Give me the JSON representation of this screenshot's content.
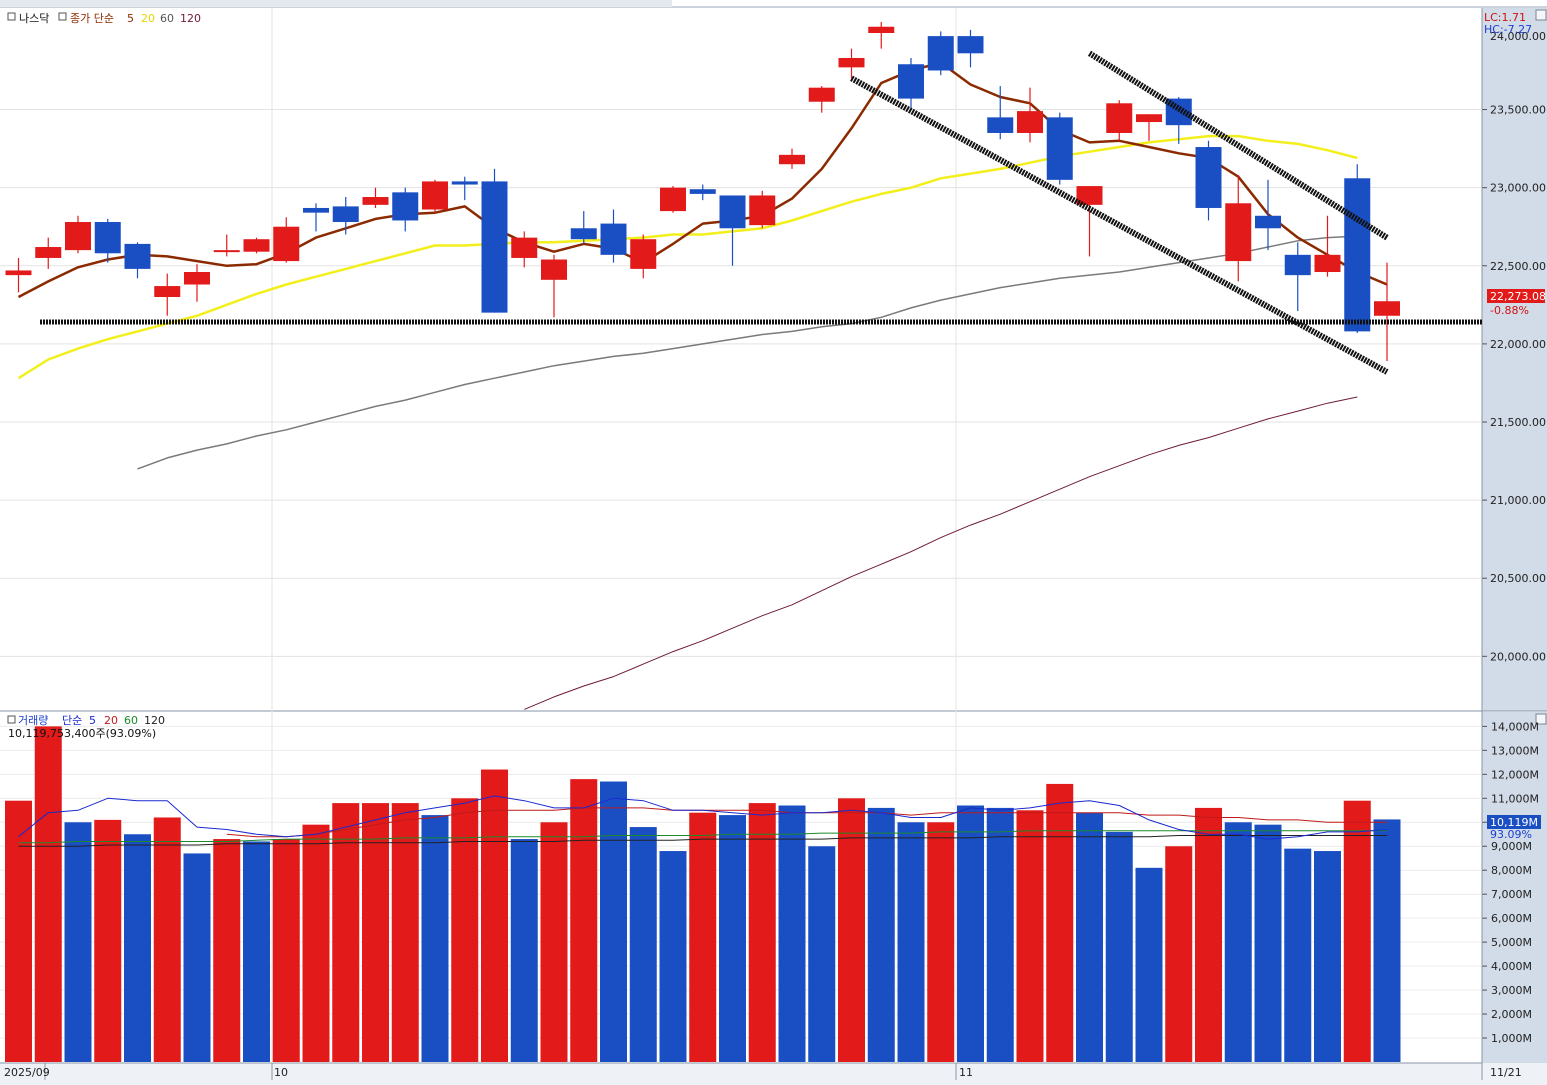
{
  "colors": {
    "up": "#e21a1a",
    "down": "#1a4fc4",
    "ma5": "#8b2a00",
    "ma20": "#f2ef1a",
    "ma60": "#7a7a7a",
    "ma120": "#6e1a3a",
    "vol_ma5": "#1a2ad0",
    "vol_ma20": "#c01a1a",
    "vol_ma60": "#1a8a2a",
    "vol_ma120": "#222222",
    "axis_bg": "#d2dbe8",
    "trendline": "#111111"
  },
  "price_panel": {
    "symbol": "나스닥",
    "indicator_label": "종가 단순",
    "ma_periods": [
      "5",
      "20",
      "60",
      "120"
    ],
    "lc_label": "LC:1.71",
    "hc_label": "HC:-7.27",
    "top_tick_partial": "24,000.00",
    "current_price": "22,273.08",
    "current_change": "-0.88%"
  },
  "volume_panel": {
    "title": "거래량",
    "indicator_label": "단순",
    "ma_periods": [
      "5",
      "20",
      "60",
      "120"
    ],
    "readout": "10,119,753,400주(93.09%)",
    "current_volume": "10,119M",
    "current_pct": "93.09%"
  },
  "date_labels": [
    "2025/09",
    "10",
    "11",
    "11/21"
  ],
  "chart_data": [
    {
      "type": "candlestick",
      "title": "나스닥",
      "ylim": [
        19650,
        24150
      ],
      "yticks": [
        20000,
        20500,
        21000,
        21500,
        22000,
        22500,
        23000,
        23500
      ],
      "ytick_labels": [
        "20,000.00",
        "20,500.00",
        "21,000.00",
        "21,500.00",
        "22,000.00",
        "22,500.00",
        "23,000.00",
        "23,500.00"
      ],
      "candles": [
        {
          "o": 22440,
          "h": 22550,
          "l": 22330,
          "c": 22470
        },
        {
          "o": 22550,
          "h": 22680,
          "l": 22480,
          "c": 22620
        },
        {
          "o": 22600,
          "h": 22820,
          "l": 22580,
          "c": 22780
        },
        {
          "o": 22780,
          "h": 22800,
          "l": 22520,
          "c": 22580
        },
        {
          "o": 22640,
          "h": 22650,
          "l": 22420,
          "c": 22480
        },
        {
          "o": 22300,
          "h": 22450,
          "l": 22180,
          "c": 22370
        },
        {
          "o": 22380,
          "h": 22510,
          "l": 22270,
          "c": 22460
        },
        {
          "o": 22590,
          "h": 22700,
          "l": 22560,
          "c": 22600
        },
        {
          "o": 22590,
          "h": 22680,
          "l": 22580,
          "c": 22670
        },
        {
          "o": 22530,
          "h": 22810,
          "l": 22520,
          "c": 22750
        },
        {
          "o": 22870,
          "h": 22900,
          "l": 22720,
          "c": 22840
        },
        {
          "o": 22880,
          "h": 22940,
          "l": 22700,
          "c": 22780
        },
        {
          "o": 22890,
          "h": 23000,
          "l": 22870,
          "c": 22940
        },
        {
          "o": 22970,
          "h": 23000,
          "l": 22720,
          "c": 22790
        },
        {
          "o": 22860,
          "h": 23050,
          "l": 22840,
          "c": 23040
        },
        {
          "o": 23040,
          "h": 23070,
          "l": 22920,
          "c": 23020
        },
        {
          "o": 23040,
          "h": 23120,
          "l": 22200,
          "c": 22200
        },
        {
          "o": 22550,
          "h": 22720,
          "l": 22490,
          "c": 22680
        },
        {
          "o": 22410,
          "h": 22570,
          "l": 22170,
          "c": 22540
        },
        {
          "o": 22740,
          "h": 22850,
          "l": 22640,
          "c": 22670
        },
        {
          "o": 22770,
          "h": 22860,
          "l": 22520,
          "c": 22570
        },
        {
          "o": 22480,
          "h": 22700,
          "l": 22420,
          "c": 22670
        },
        {
          "o": 22850,
          "h": 23010,
          "l": 22840,
          "c": 23000
        },
        {
          "o": 22990,
          "h": 23020,
          "l": 22920,
          "c": 22960
        },
        {
          "o": 22950,
          "h": 22950,
          "l": 22500,
          "c": 22740
        },
        {
          "o": 22760,
          "h": 22980,
          "l": 22740,
          "c": 22950
        },
        {
          "o": 23150,
          "h": 23250,
          "l": 23120,
          "c": 23210
        },
        {
          "o": 23550,
          "h": 23650,
          "l": 23480,
          "c": 23640
        },
        {
          "o": 23770,
          "h": 23890,
          "l": 23700,
          "c": 23830
        },
        {
          "o": 23990,
          "h": 24060,
          "l": 23890,
          "c": 24030
        },
        {
          "o": 23790,
          "h": 23830,
          "l": 23510,
          "c": 23570
        },
        {
          "o": 23970,
          "h": 24000,
          "l": 23720,
          "c": 23750
        },
        {
          "o": 23970,
          "h": 24010,
          "l": 23770,
          "c": 23860
        },
        {
          "o": 23450,
          "h": 23650,
          "l": 23310,
          "c": 23350
        },
        {
          "o": 23350,
          "h": 23640,
          "l": 23290,
          "c": 23490
        },
        {
          "o": 23450,
          "h": 23480,
          "l": 23020,
          "c": 23050
        },
        {
          "o": 22890,
          "h": 23010,
          "l": 22560,
          "c": 23010
        },
        {
          "o": 23350,
          "h": 23560,
          "l": 23300,
          "c": 23540
        },
        {
          "o": 23420,
          "h": 23470,
          "l": 23300,
          "c": 23470
        },
        {
          "o": 23570,
          "h": 23580,
          "l": 23280,
          "c": 23400
        },
        {
          "o": 23260,
          "h": 23300,
          "l": 22790,
          "c": 22870
        },
        {
          "o": 22530,
          "h": 23080,
          "l": 22400,
          "c": 22900
        },
        {
          "o": 22820,
          "h": 23050,
          "l": 22600,
          "c": 22740
        },
        {
          "o": 22570,
          "h": 22650,
          "l": 22210,
          "c": 22440
        },
        {
          "o": 22460,
          "h": 22820,
          "l": 22430,
          "c": 22570
        },
        {
          "o": 23060,
          "h": 23150,
          "l": 22070,
          "c": 22080
        },
        {
          "o": 22180,
          "h": 22520,
          "l": 21890,
          "c": 22273
        }
      ],
      "ma5": [
        22300,
        22400,
        22490,
        22540,
        22570,
        22560,
        22530,
        22500,
        22510,
        22580,
        22680,
        22740,
        22800,
        22830,
        22840,
        22880,
        22740,
        22650,
        22590,
        22640,
        22610,
        22520,
        22640,
        22770,
        22790,
        22820,
        22930,
        23120,
        23380,
        23670,
        23750,
        23800,
        23660,
        23580,
        23540,
        23370,
        23290,
        23300,
        23260,
        23220,
        23190,
        23070,
        22830,
        22680,
        22570,
        22460,
        22380
      ],
      "ma20": [
        21780,
        21900,
        21970,
        22030,
        22080,
        22130,
        22180,
        22250,
        22320,
        22380,
        22430,
        22480,
        22530,
        22580,
        22630,
        22630,
        22640,
        22650,
        22650,
        22660,
        22670,
        22680,
        22700,
        22700,
        22720,
        22740,
        22790,
        22850,
        22910,
        22960,
        23000,
        23060,
        23090,
        23120,
        23160,
        23200,
        23230,
        23260,
        23290,
        23310,
        23330,
        23330,
        23300,
        23280,
        23240,
        23190
      ],
      "ma60": [
        21200,
        21270,
        21320,
        21360,
        21410,
        21450,
        21500,
        21550,
        21600,
        21640,
        21690,
        21740,
        21780,
        21820,
        21860,
        21890,
        21920,
        21940,
        21970,
        22000,
        22030,
        22060,
        22080,
        22110,
        22130,
        22170,
        22230,
        22280,
        22320,
        22360,
        22390,
        22420,
        22440,
        22460,
        22490,
        22520,
        22550,
        22580,
        22620,
        22660,
        22680,
        22690
      ],
      "ma120": [
        19660,
        19740,
        19810,
        19870,
        19950,
        20030,
        20100,
        20180,
        20260,
        20330,
        20420,
        20510,
        20590,
        20670,
        20760,
        20840,
        20910,
        20990,
        21070,
        21150,
        21220,
        21290,
        21350,
        21400,
        21460,
        21520,
        21570,
        21620,
        21660
      ],
      "ma60_start": 4,
      "ma120_start": 17,
      "support_level": 22140,
      "channel_upper": [
        [
          36,
          23860
        ],
        [
          46,
          22680
        ]
      ],
      "channel_lower": [
        [
          28,
          23700
        ],
        [
          46,
          21820
        ]
      ]
    },
    {
      "type": "bar",
      "title": "거래량",
      "ylim": [
        0,
        14600
      ],
      "yticks": [
        1000,
        2000,
        3000,
        4000,
        5000,
        6000,
        7000,
        8000,
        9000,
        10000,
        11000,
        12000,
        13000,
        14000
      ],
      "ytick_labels": [
        "1,000M",
        "2,000M",
        "3,000M",
        "4,000M",
        "5,000M",
        "6,000M",
        "7,000M",
        "8,000M",
        "9,000M",
        "10,000M",
        "11,000M",
        "12,000M",
        "13,000M",
        "14,000M"
      ],
      "values": [
        10900,
        14000,
        10000,
        10100,
        9500,
        10200,
        8700,
        9300,
        9200,
        9300,
        9900,
        10800,
        10800,
        10800,
        10300,
        11000,
        12200,
        9300,
        10000,
        11800,
        11700,
        9800,
        8800,
        10400,
        10300,
        10800,
        10700,
        9000,
        11000,
        10600,
        10000,
        10000,
        10700,
        10600,
        10500,
        11600,
        10400,
        9600,
        8100,
        9000,
        10600,
        10000,
        9900,
        8900,
        8800,
        10900,
        10119
      ],
      "up": [
        true,
        true,
        false,
        true,
        false,
        true,
        false,
        true,
        false,
        true,
        true,
        true,
        true,
        true,
        false,
        true,
        true,
        false,
        true,
        true,
        false,
        false,
        false,
        true,
        false,
        true,
        false,
        false,
        true,
        false,
        false,
        true,
        false,
        false,
        true,
        true,
        false,
        false,
        false,
        true,
        true,
        false,
        false,
        false,
        false,
        true,
        false
      ],
      "ma5": [
        9400,
        10400,
        10500,
        11000,
        10900,
        10900,
        9800,
        9700,
        9500,
        9400,
        9500,
        9800,
        10100,
        10400,
        10600,
        10800,
        11100,
        10900,
        10600,
        10600,
        11000,
        10900,
        10500,
        10500,
        10400,
        10300,
        10400,
        10400,
        10500,
        10400,
        10200,
        10200,
        10600,
        10500,
        10600,
        10800,
        10900,
        10700,
        10100,
        9700,
        9500,
        9500,
        9300,
        9400,
        9600,
        9600,
        9700
      ],
      "ma20": [
        null,
        null,
        null,
        null,
        null,
        null,
        null,
        9500,
        9400,
        9400,
        9500,
        9700,
        9900,
        10100,
        10200,
        10400,
        10500,
        10500,
        10500,
        10600,
        10600,
        10600,
        10500,
        10500,
        10500,
        10500,
        10400,
        10400,
        10400,
        10400,
        10300,
        10400,
        10400,
        10400,
        10400,
        10400,
        10400,
        10400,
        10300,
        10300,
        10200,
        10200,
        10100,
        10100,
        10000,
        10000,
        10000
      ],
      "ma60": [
        9150,
        9150,
        9200,
        9200,
        9200,
        9200,
        9200,
        9200,
        9250,
        9300,
        9300,
        9300,
        9300,
        9350,
        9350,
        9350,
        9400,
        9400,
        9400,
        9400,
        9450,
        9450,
        9450,
        9450,
        9500,
        9500,
        9500,
        9550,
        9550,
        9550,
        9550,
        9600,
        9600,
        9600,
        9650,
        9650,
        9650,
        9650,
        9650,
        9650,
        9650,
        9650,
        9650,
        9650,
        9650,
        9650,
        9650
      ],
      "ma120": [
        9000,
        9000,
        9000,
        9050,
        9050,
        9050,
        9050,
        9100,
        9100,
        9100,
        9100,
        9150,
        9150,
        9150,
        9150,
        9200,
        9200,
        9200,
        9200,
        9250,
        9250,
        9250,
        9250,
        9300,
        9300,
        9300,
        9300,
        9300,
        9350,
        9350,
        9350,
        9350,
        9350,
        9400,
        9400,
        9400,
        9400,
        9400,
        9400,
        9450,
        9450,
        9450,
        9450,
        9450,
        9450,
        9450,
        9450
      ]
    }
  ]
}
